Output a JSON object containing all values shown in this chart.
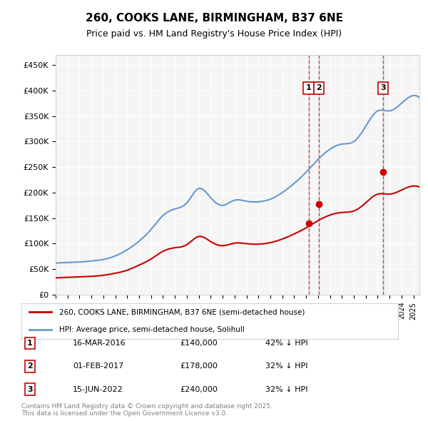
{
  "title": "260, COOKS LANE, BIRMINGHAM, B37 6NE",
  "subtitle": "Price paid vs. HM Land Registry's House Price Index (HPI)",
  "ylabel": "",
  "ylim": [
    0,
    470000
  ],
  "yticks": [
    0,
    50000,
    100000,
    150000,
    200000,
    250000,
    300000,
    350000,
    400000,
    450000
  ],
  "ytick_labels": [
    "£0",
    "£50K",
    "£100K",
    "£150K",
    "£200K",
    "£250K",
    "£300K",
    "£350K",
    "£400K",
    "£450K"
  ],
  "background_color": "#ffffff",
  "plot_bg_color": "#f5f5f5",
  "grid_color": "#ffffff",
  "hpi_color": "#6699cc",
  "price_color": "#cc0000",
  "sale_dates": [
    "2016-03-16",
    "2017-02-01",
    "2022-06-15"
  ],
  "sale_prices": [
    140000,
    178000,
    240000
  ],
  "sale_labels": [
    "1",
    "2",
    "3"
  ],
  "sale_info": [
    {
      "num": "1",
      "date": "16-MAR-2016",
      "price": "£140,000",
      "note": "42% ↓ HPI"
    },
    {
      "num": "2",
      "date": "01-FEB-2017",
      "price": "£178,000",
      "note": "32% ↓ HPI"
    },
    {
      "num": "3",
      "date": "15-JUN-2022",
      "price": "£240,000",
      "note": "32% ↓ HPI"
    }
  ],
  "legend_line1": "260, COOKS LANE, BIRMINGHAM, B37 6NE (semi-detached house)",
  "legend_line2": "HPI: Average price, semi-detached house, Solihull",
  "footnote": "Contains HM Land Registry data © Crown copyright and database right 2025.\nThis data is licensed under the Open Government Licence v3.0.",
  "hpi_years": [
    1995,
    1996,
    1997,
    1998,
    1999,
    2000,
    2001,
    2002,
    2003,
    2004,
    2005,
    2006,
    2007,
    2008,
    2009,
    2010,
    2011,
    2012,
    2013,
    2014,
    2015,
    2016,
    2017,
    2018,
    2019,
    2020,
    2021,
    2022,
    2023,
    2024,
    2025
  ],
  "hpi_values": [
    62000,
    63000,
    64000,
    66000,
    69000,
    76000,
    88000,
    105000,
    128000,
    155000,
    168000,
    180000,
    208000,
    190000,
    175000,
    185000,
    183000,
    182000,
    187000,
    200000,
    218000,
    240000,
    265000,
    285000,
    295000,
    300000,
    330000,
    360000,
    360000,
    375000,
    390000
  ],
  "price_years": [
    1995,
    1996,
    1997,
    1998,
    1999,
    2000,
    2001,
    2002,
    2003,
    2004,
    2005,
    2006,
    2007,
    2008,
    2009,
    2010,
    2011,
    2012,
    2013,
    2014,
    2015,
    2016,
    2017,
    2018,
    2019,
    2020,
    2021,
    2022,
    2023,
    2024,
    2025
  ],
  "price_values": [
    33000,
    34000,
    35000,
    36000,
    38000,
    42000,
    48000,
    58000,
    70000,
    85000,
    92000,
    98000,
    114000,
    104000,
    96000,
    101000,
    100000,
    99000,
    102000,
    109000,
    119000,
    131000,
    145000,
    156000,
    161000,
    164000,
    180000,
    197000,
    197000,
    205000,
    213000
  ]
}
